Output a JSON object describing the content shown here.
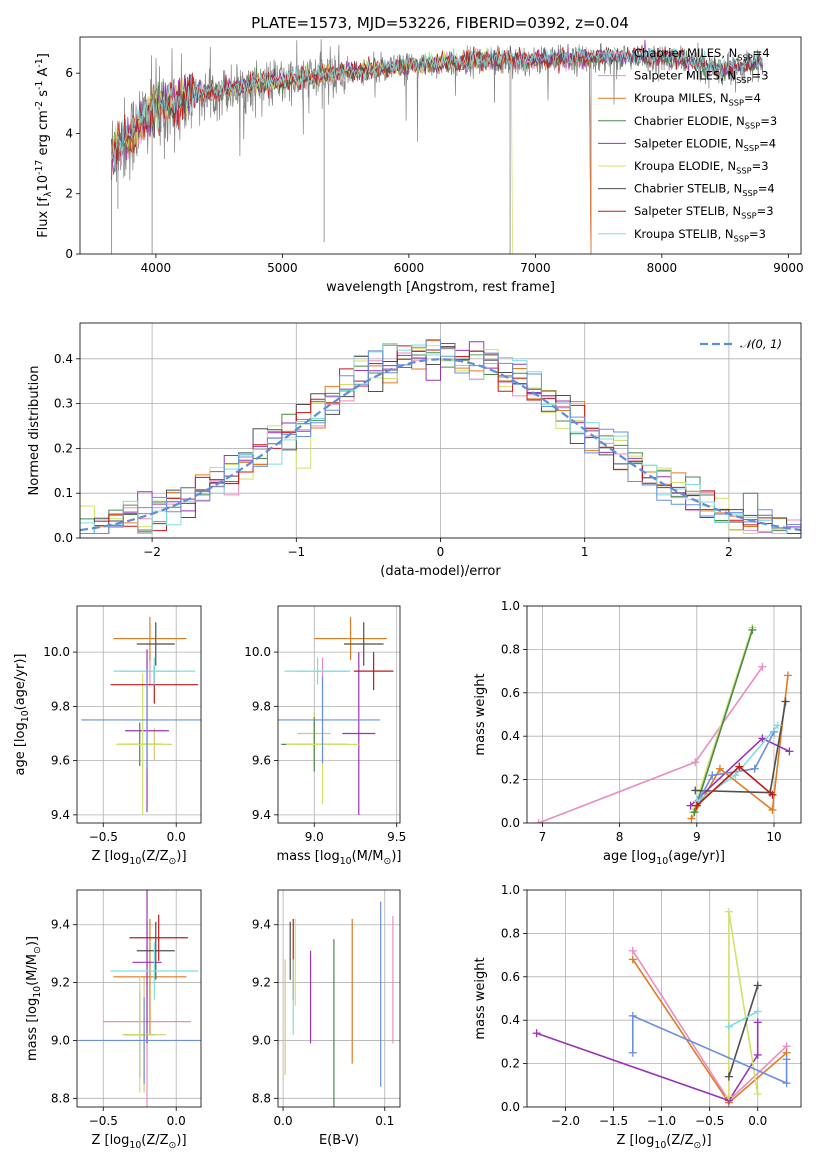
{
  "colors": {
    "obs": "#808080",
    "normal": "#5b8fd9",
    "series": [
      "#e88dc5",
      "#d9c67a",
      "#e07b22",
      "#4a8a4a",
      "#9a34b8",
      "#d3e06a",
      "#4f4f4f",
      "#c21a1a",
      "#7fdde0",
      "#6a8fe0",
      "#2a9aa0",
      "#c8e04a"
    ]
  },
  "legend_names": [
    "Chabrier MILES, N_{SSP}=4",
    "Salpeter MILES, N_{SSP}=3",
    "Kroupa MILES, N_{SSP}=4",
    "Chabrier ELODIE, N_{SSP}=3",
    "Salpeter ELODIE, N_{SSP}=4",
    "Kroupa ELODIE, N_{SSP}=3",
    "Chabrier STELIB, N_{SSP}=4",
    "Salpeter STELIB, N_{SSP}=3",
    "Kroupa STELIB, N_{SSP}=3"
  ],
  "chart_data": [
    {
      "id": "spectrum",
      "type": "line",
      "title": "PLATE=1573, MJD=53226, FIBERID=0392, z=0.04",
      "xlabel": "wavelength [Angstrom, rest frame]",
      "ylabel": "Flux [f_{λ}10^{-17} erg cm^{-2} s^{-1} A^{-1}]",
      "xlim": [
        3400,
        9100
      ],
      "ylim": [
        0,
        7.2
      ],
      "xticks": [
        4000,
        5000,
        6000,
        7000,
        8000,
        9000
      ],
      "yticks": [
        0,
        2,
        4,
        6
      ],
      "legend": "upper right",
      "continuum": [
        [
          3650,
          3.4
        ],
        [
          3800,
          3.9
        ],
        [
          3900,
          4.5
        ],
        [
          4000,
          4.8
        ],
        [
          4200,
          5.1
        ],
        [
          4500,
          5.4
        ],
        [
          4800,
          5.6
        ],
        [
          5000,
          5.7
        ],
        [
          5500,
          6.0
        ],
        [
          6000,
          6.2
        ],
        [
          6500,
          6.4
        ],
        [
          7000,
          6.4
        ],
        [
          7500,
          6.5
        ],
        [
          8000,
          6.5
        ],
        [
          8500,
          6.1
        ],
        [
          8800,
          6.3
        ]
      ],
      "model_end": {
        "miles": 7430,
        "kroupa_elodie": 6810
      }
    },
    {
      "id": "residuals",
      "type": "line",
      "xlabel": "(data-model)/error",
      "ylabel": "Normed distribution",
      "xlim": [
        -2.5,
        2.5
      ],
      "ylim": [
        0,
        0.48
      ],
      "xticks": [
        -2,
        -1,
        0,
        1,
        2
      ],
      "yticks": [
        0,
        0.1,
        0.2,
        0.3,
        0.4
      ],
      "legend": "upper right",
      "legend_label": "𝒩(0, 1)",
      "grid": true,
      "bin_width": 0.1
    },
    {
      "id": "z_age",
      "type": "scatter",
      "xlabel": "Z [log_{10}(Z/Z_{⊙})]",
      "ylabel": "age  [log_{10}(age/yr)]",
      "xlim": [
        -0.68,
        0.17
      ],
      "ylim": [
        9.37,
        10.17
      ],
      "xticks": [
        -0.5,
        0.0
      ],
      "yticks": [
        9.4,
        9.6,
        9.8,
        10.0
      ],
      "grid": true,
      "points": [
        {
          "x": -0.18,
          "y": 9.93,
          "xerr": 0.2,
          "yerr": 0.05
        },
        {
          "x": -0.15,
          "y": 9.66,
          "xerr": 0.12,
          "yerr": 0.06
        },
        {
          "x": -0.18,
          "y": 10.05,
          "xerr": 0.25,
          "yerr": 0.08
        },
        {
          "x": -0.25,
          "y": 9.66,
          "xerr": 0.15,
          "yerr": 0.08
        },
        {
          "x": -0.2,
          "y": 9.71,
          "xerr": 0.15,
          "yerr": 0.3
        },
        {
          "x": -0.23,
          "y": 9.66,
          "xerr": 0.18,
          "yerr": 0.26
        },
        {
          "x": -0.14,
          "y": 10.03,
          "xerr": 0.13,
          "yerr": 0.08
        },
        {
          "x": -0.15,
          "y": 9.88,
          "xerr": 0.3,
          "yerr": 0.07
        },
        {
          "x": -0.15,
          "y": 9.93,
          "xerr": 0.28,
          "yerr": 0.05
        },
        {
          "x": -0.2,
          "y": 9.75,
          "xerr": 0.45,
          "yerr": 0.18
        }
      ]
    },
    {
      "id": "mass_age",
      "type": "scatter",
      "xlabel": "mass [log_{10}(M/M_{⊙})]",
      "ylabel": "",
      "xlim": [
        8.78,
        9.52
      ],
      "ylim": [
        9.37,
        10.17
      ],
      "xticks": [
        9.0,
        9.5
      ],
      "yticks": [
        9.4,
        9.6,
        9.8,
        10.0
      ],
      "grid": true,
      "points": [
        {
          "x": 9.05,
          "y": 9.93,
          "xerr": 0.15,
          "yerr": 0.05
        },
        {
          "x": 9.0,
          "y": 9.7,
          "xerr": 0.1,
          "yerr": 0.08
        },
        {
          "x": 9.22,
          "y": 10.05,
          "xerr": 0.22,
          "yerr": 0.08
        },
        {
          "x": 9.0,
          "y": 9.66,
          "xerr": 0.2,
          "yerr": 0.1
        },
        {
          "x": 9.27,
          "y": 9.7,
          "xerr": 0.1,
          "yerr": 0.3
        },
        {
          "x": 9.05,
          "y": 9.66,
          "xerr": 0.22,
          "yerr": 0.22
        },
        {
          "x": 9.3,
          "y": 10.03,
          "xerr": 0.12,
          "yerr": 0.08
        },
        {
          "x": 9.36,
          "y": 9.93,
          "xerr": 0.12,
          "yerr": 0.07
        },
        {
          "x": 9.02,
          "y": 9.93,
          "xerr": 0.2,
          "yerr": 0.05
        },
        {
          "x": 9.05,
          "y": 9.75,
          "xerr": 0.35,
          "yerr": 0.16
        }
      ]
    },
    {
      "id": "age_weight",
      "type": "line",
      "xlabel": "age  [log_{10}(age/yr)]",
      "ylabel": "mass weight",
      "xlim": [
        6.8,
        10.35
      ],
      "ylim": [
        0,
        1.0
      ],
      "xticks": [
        7,
        8,
        9,
        10
      ],
      "yticks": [
        0,
        0.2,
        0.4,
        0.6,
        0.8,
        1.0
      ],
      "grid": true,
      "series": [
        {
          "c": 0,
          "pts": [
            [
              6.95,
              0.0
            ],
            [
              8.98,
              0.28
            ],
            [
              9.85,
              0.72
            ]
          ]
        },
        {
          "c": 2,
          "pts": [
            [
              8.93,
              0.02
            ],
            [
              9.3,
              0.25
            ],
            [
              9.98,
              0.06
            ],
            [
              10.18,
              0.68
            ]
          ]
        },
        {
          "c": 4,
          "pts": [
            [
              8.92,
              0.08
            ],
            [
              9.85,
              0.39
            ],
            [
              10.2,
              0.33
            ]
          ]
        },
        {
          "c": 5,
          "pts": [
            [
              8.95,
              0.05
            ],
            [
              9.72,
              0.9
            ]
          ]
        },
        {
          "c": 3,
          "pts": [
            [
              8.97,
              0.05
            ],
            [
              9.72,
              0.89
            ]
          ]
        },
        {
          "c": 6,
          "pts": [
            [
              8.98,
              0.15
            ],
            [
              9.95,
              0.14
            ],
            [
              10.15,
              0.56
            ]
          ]
        },
        {
          "c": 9,
          "pts": [
            [
              9.05,
              0.12
            ],
            [
              9.2,
              0.22
            ],
            [
              9.75,
              0.25
            ],
            [
              10.0,
              0.42
            ]
          ]
        },
        {
          "c": 8,
          "pts": [
            [
              9.0,
              0.1
            ],
            [
              9.5,
              0.22
            ],
            [
              10.05,
              0.45
            ]
          ]
        },
        {
          "c": 7,
          "pts": [
            [
              9.0,
              0.08
            ],
            [
              9.55,
              0.26
            ],
            [
              9.98,
              0.13
            ]
          ]
        }
      ]
    },
    {
      "id": "z_mass",
      "type": "scatter",
      "xlabel": "Z [log_{10}(Z/Z_{⊙})]",
      "ylabel": "mass [log_{10}(M/M_{⊙})]",
      "xlim": [
        -0.68,
        0.17
      ],
      "ylim": [
        8.77,
        9.52
      ],
      "xticks": [
        -0.5,
        0.0
      ],
      "yticks": [
        8.8,
        9.0,
        9.2,
        9.4
      ],
      "grid": true,
      "points": [
        {
          "x": -0.2,
          "y": 9.065,
          "xerr": 0.3,
          "yerr": 0.35
        },
        {
          "x": -0.22,
          "y": 9.02,
          "xerr": 0.15,
          "yerr": 0.2
        },
        {
          "x": -0.18,
          "y": 9.22,
          "xerr": 0.25,
          "yerr": 0.2
        },
        {
          "x": -0.25,
          "y": 9.02,
          "xerr": 0.1,
          "yerr": 0.15
        },
        {
          "x": -0.2,
          "y": 9.27,
          "xerr": 0.1,
          "yerr": 0.28
        },
        {
          "x": -0.25,
          "y": 9.02,
          "xerr": 0.1,
          "yerr": 0.2
        },
        {
          "x": -0.14,
          "y": 9.31,
          "xerr": 0.13,
          "yerr": 0.1
        },
        {
          "x": -0.12,
          "y": 9.355,
          "xerr": 0.2,
          "yerr": 0.08
        },
        {
          "x": -0.15,
          "y": 9.24,
          "xerr": 0.3,
          "yerr": 0.1
        },
        {
          "x": -0.22,
          "y": 9.0,
          "xerr": 0.45,
          "yerr": 0.15
        }
      ]
    },
    {
      "id": "ebv_mass",
      "type": "scatter",
      "xlabel": "E(B-V)",
      "ylabel": "",
      "xlim": [
        -0.005,
        0.115
      ],
      "ylim": [
        8.77,
        9.52
      ],
      "xticks": [
        0.0,
        0.1
      ],
      "yticks": [
        8.8,
        9.0,
        9.2,
        9.4
      ],
      "grid": true,
      "points": [
        {
          "x": 0.108,
          "y": 9.21,
          "xerr": 0,
          "yerr": 0.22
        },
        {
          "x": 0.002,
          "y": 9.08,
          "xerr": 0,
          "yerr": 0.2
        },
        {
          "x": 0.068,
          "y": 9.17,
          "xerr": 0,
          "yerr": 0.25
        },
        {
          "x": 0.05,
          "y": 9.02,
          "xerr": 0,
          "yerr": 0.33
        },
        {
          "x": 0.027,
          "y": 9.15,
          "xerr": 0,
          "yerr": 0.16
        },
        {
          "x": 0.012,
          "y": 9.27,
          "xerr": 0,
          "yerr": 0.15
        },
        {
          "x": 0.007,
          "y": 9.31,
          "xerr": 0,
          "yerr": 0.1
        },
        {
          "x": 0.01,
          "y": 9.28,
          "xerr": 0,
          "yerr": 0.14
        },
        {
          "x": 0.01,
          "y": 9.15,
          "xerr": 0,
          "yerr": 0.13
        },
        {
          "x": 0.096,
          "y": 9.16,
          "xerr": 0,
          "yerr": 0.32
        }
      ]
    },
    {
      "id": "z_weight",
      "type": "line",
      "xlabel": "Z [log_{10}(Z/Z_{⊙})]",
      "ylabel": "mass weight",
      "xlim": [
        -2.4,
        0.45
      ],
      "ylim": [
        0,
        1.0
      ],
      "xticks": [
        -2.0,
        -1.5,
        -1.0,
        -0.5,
        0.0
      ],
      "yticks": [
        0,
        0.2,
        0.4,
        0.6,
        0.8,
        1.0
      ],
      "grid": true,
      "series": [
        {
          "c": 0,
          "pts": [
            [
              -1.3,
              0.72
            ],
            [
              -0.3,
              0.03
            ],
            [
              0.3,
              0.28
            ]
          ]
        },
        {
          "c": 2,
          "pts": [
            [
              -1.3,
              0.68
            ],
            [
              -0.3,
              0.02
            ],
            [
              0.3,
              0.25
            ]
          ]
        },
        {
          "c": 4,
          "pts": [
            [
              -2.3,
              0.34
            ],
            [
              -0.3,
              0.03
            ],
            [
              0.0,
              0.24
            ],
            [
              0.0,
              0.39
            ]
          ]
        },
        {
          "c": 5,
          "pts": [
            [
              -0.3,
              0.05
            ],
            [
              -0.3,
              0.9
            ],
            [
              0.0,
              0.06
            ]
          ]
        },
        {
          "c": 6,
          "pts": [
            [
              -0.3,
              0.14
            ],
            [
              0.0,
              0.56
            ]
          ]
        },
        {
          "c": 9,
          "pts": [
            [
              -1.3,
              0.25
            ],
            [
              -1.3,
              0.42
            ],
            [
              0.3,
              0.11
            ],
            [
              0.3,
              0.22
            ]
          ]
        },
        {
          "c": 8,
          "pts": [
            [
              -0.3,
              0.37
            ],
            [
              0.0,
              0.44
            ]
          ]
        }
      ]
    }
  ]
}
